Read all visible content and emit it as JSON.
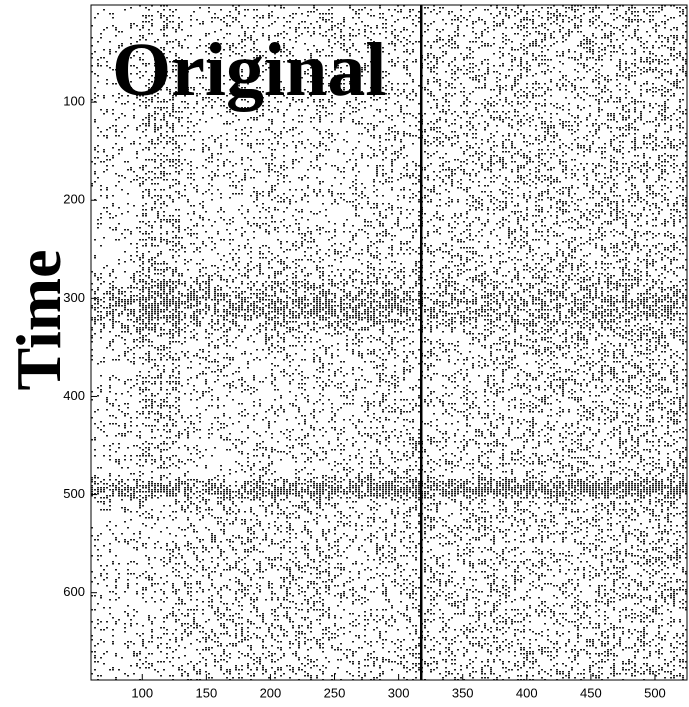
{
  "chart_data": {
    "type": "image",
    "title": "Original",
    "ylabel": "Time",
    "xlim": [
      60,
      525
    ],
    "xticks": [
      100,
      150,
      200,
      250,
      300,
      350,
      400,
      450,
      500
    ],
    "ylim": [
      689,
      1
    ],
    "yticks": [
      100,
      200,
      300,
      400,
      500,
      600
    ]
  }
}
